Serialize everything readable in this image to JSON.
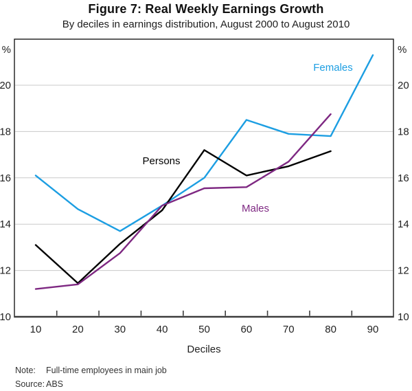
{
  "title": "Figure 7: Real Weekly Earnings Growth",
  "subtitle": "By deciles in earnings distribution, August 2000 to August 2010",
  "note": {
    "label": "Note:",
    "text": "Full-time employees in main job"
  },
  "source": {
    "label": "Source:",
    "text": "ABS"
  },
  "colors": {
    "females_line": "#1C9EE2",
    "persons_line": "#000000",
    "males_line": "#7E2882",
    "gridline": "#c9c9c9",
    "axis_box": "#1a1a1a",
    "x_axis": "#3d3d3d",
    "tick_label": "#1f1f1f"
  },
  "chart_data": {
    "type": "line",
    "x": [
      10,
      20,
      30,
      40,
      50,
      60,
      70,
      80,
      90
    ],
    "xlabel": "Deciles",
    "ylabel": "%",
    "ylim": [
      10,
      22
    ],
    "yticks": [
      10,
      12,
      14,
      16,
      18,
      20
    ],
    "grid": true,
    "legend_position": "labels-on-lines",
    "series": [
      {
        "name": "Females",
        "color": "#1C9EE2",
        "values": [
          16.1,
          14.65,
          13.7,
          14.8,
          16.0,
          18.5,
          17.9,
          17.8,
          21.3
        ]
      },
      {
        "name": "Persons",
        "color": "#000000",
        "values": [
          13.1,
          11.45,
          13.15,
          14.6,
          17.2,
          16.1,
          16.5,
          17.15,
          null
        ]
      },
      {
        "name": "Males",
        "color": "#7E2882",
        "values": [
          11.2,
          11.4,
          12.75,
          14.8,
          15.55,
          15.6,
          16.7,
          18.75,
          null
        ]
      }
    ],
    "y_unit_label": "%"
  }
}
